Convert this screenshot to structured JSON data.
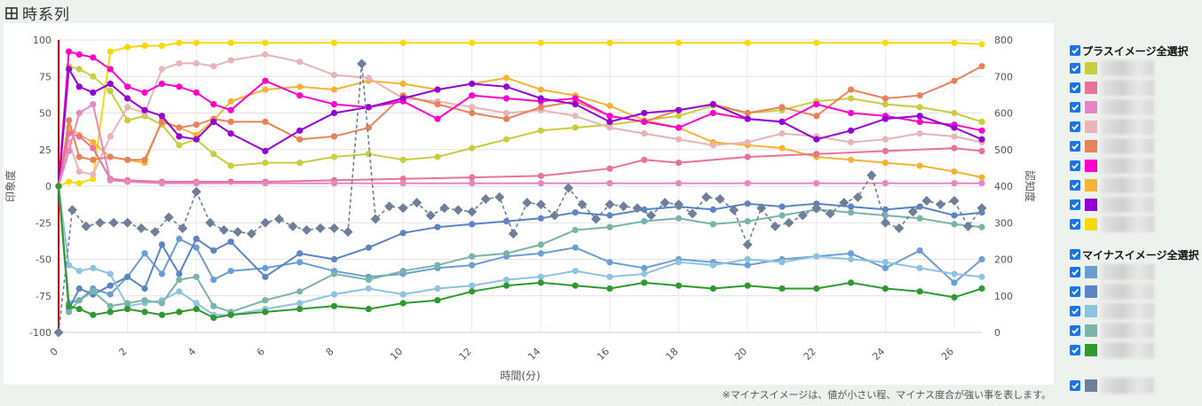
{
  "header": {
    "title": "時系列",
    "icon": "grid-icon"
  },
  "note": "※マイナスイメージは、値が小さい程、マイナス度合が強い事を表します。",
  "legend": {
    "plus_label": "プラスイメージ全選択",
    "minus_label": "マイナスイメージ全選択",
    "plus_items": [
      {
        "color": "#c9cc3f"
      },
      {
        "color": "#e8739a"
      },
      {
        "color": "#e587c5"
      },
      {
        "color": "#e8b4b8"
      },
      {
        "color": "#e8825a"
      },
      {
        "color": "#ff00cc"
      },
      {
        "color": "#f5b335"
      },
      {
        "color": "#9400d3"
      },
      {
        "color": "#f5d90a"
      }
    ],
    "minus_items": [
      {
        "color": "#6a9fd6"
      },
      {
        "color": "#5b84c4"
      },
      {
        "color": "#8dc2e0"
      },
      {
        "color": "#79b4a9"
      },
      {
        "color": "#2e9a2e"
      }
    ],
    "extra_items": [
      {
        "color": "#6f7f99"
      }
    ]
  },
  "chart_data": {
    "type": "line",
    "xlabel": "時間(分)",
    "ylabel": "印象度",
    "y2label": "認知度",
    "xlim": [
      0,
      26.8
    ],
    "ylim": [
      -100,
      100
    ],
    "y2lim": [
      0,
      800
    ],
    "xticks": [
      "0",
      "2",
      "4",
      "6",
      "8",
      "10",
      "12",
      "14",
      "16",
      "18",
      "20",
      "22",
      "24",
      "26"
    ],
    "yticks": [
      "100",
      "75",
      "50",
      "25",
      "0",
      "-25",
      "-50",
      "-75",
      "-100"
    ],
    "y2ticks": [
      "800",
      "700",
      "600",
      "500",
      "400",
      "300",
      "200",
      "100",
      "0"
    ],
    "grid": true,
    "series": [
      {
        "color": "#f5d90a",
        "axis": "left",
        "x": [
          0,
          0.3,
          0.6,
          1,
          1.5,
          2,
          2.5,
          3,
          3.5,
          4,
          5,
          6,
          8,
          10,
          12,
          14,
          16,
          18,
          20,
          22,
          24,
          26,
          26.8
        ],
        "y": [
          0,
          3,
          2,
          5,
          92,
          95,
          96,
          96,
          98,
          98,
          98,
          98,
          98,
          98,
          98,
          98,
          98,
          98,
          98,
          98,
          98,
          98,
          97
        ]
      },
      {
        "color": "#f5b335",
        "axis": "left",
        "x": [
          0,
          0.3,
          0.6,
          1,
          1.5,
          2,
          2.5,
          3,
          3.5,
          4,
          4.5,
          5,
          6,
          7,
          8,
          9,
          10,
          11,
          12,
          13,
          14,
          15,
          16,
          17,
          18,
          19,
          20,
          21,
          22,
          23,
          24,
          25,
          26,
          26.8
        ],
        "y": [
          0,
          40,
          35,
          30,
          20,
          18,
          16,
          45,
          40,
          35,
          45,
          58,
          66,
          68,
          66,
          72,
          70,
          66,
          70,
          74,
          66,
          62,
          55,
          45,
          40,
          30,
          28,
          26,
          20,
          18,
          16,
          14,
          10,
          6
        ]
      },
      {
        "color": "#c9cc3f",
        "axis": "left",
        "x": [
          0,
          0.3,
          0.6,
          1,
          1.5,
          2,
          2.5,
          3,
          3.5,
          4,
          4.5,
          5,
          6,
          7,
          8,
          9,
          10,
          11,
          12,
          13,
          14,
          15,
          16,
          17,
          18,
          19,
          20,
          21,
          22,
          23,
          24,
          25,
          26,
          26.8
        ],
        "y": [
          0,
          82,
          80,
          75,
          65,
          45,
          48,
          42,
          28,
          32,
          22,
          14,
          16,
          16,
          20,
          22,
          18,
          20,
          26,
          32,
          38,
          40,
          42,
          45,
          48,
          55,
          50,
          52,
          58,
          60,
          56,
          54,
          50,
          44
        ]
      },
      {
        "color": "#e8b4b8",
        "axis": "left",
        "x": [
          0,
          0.3,
          0.6,
          1,
          1.5,
          2,
          2.5,
          3,
          3.5,
          4,
          4.5,
          5,
          6,
          7,
          8,
          9,
          10,
          11,
          12,
          13,
          14,
          15,
          16,
          17,
          18,
          19,
          20,
          21,
          22,
          23,
          24,
          25,
          26,
          26.8
        ],
        "y": [
          0,
          30,
          10,
          8,
          34,
          54,
          50,
          80,
          84,
          84,
          82,
          86,
          90,
          85,
          76,
          74,
          60,
          58,
          54,
          50,
          52,
          48,
          40,
          36,
          32,
          28,
          30,
          36,
          34,
          30,
          32,
          36,
          34,
          30
        ]
      },
      {
        "color": "#e8825a",
        "axis": "left",
        "x": [
          0,
          0.3,
          0.6,
          1,
          1.5,
          2,
          2.5,
          3,
          3.5,
          4,
          4.5,
          5,
          6,
          7,
          8,
          9,
          10,
          11,
          12,
          13,
          14,
          15,
          16,
          17,
          18,
          19,
          20,
          21,
          22,
          23,
          24,
          25,
          26,
          26.8
        ],
        "y": [
          0,
          45,
          20,
          18,
          20,
          18,
          18,
          44,
          40,
          42,
          46,
          44,
          44,
          32,
          34,
          40,
          62,
          56,
          50,
          46,
          54,
          58,
          48,
          44,
          52,
          56,
          50,
          54,
          48,
          66,
          60,
          62,
          72,
          82
        ]
      },
      {
        "color": "#ff00cc",
        "axis": "left",
        "x": [
          0,
          0.3,
          0.6,
          1,
          1.5,
          2,
          2.5,
          3,
          3.5,
          4,
          4.5,
          5,
          6,
          7,
          8,
          9,
          10,
          11,
          12,
          13,
          14,
          15,
          16,
          17,
          18,
          19,
          20,
          21,
          22,
          23,
          24,
          25,
          26,
          26.8
        ],
        "y": [
          0,
          92,
          90,
          88,
          80,
          68,
          64,
          70,
          68,
          64,
          56,
          52,
          72,
          62,
          56,
          54,
          58,
          46,
          62,
          60,
          58,
          60,
          48,
          44,
          40,
          50,
          46,
          44,
          56,
          50,
          48,
          44,
          42,
          38
        ]
      },
      {
        "color": "#9400d3",
        "axis": "left",
        "x": [
          0,
          0.3,
          0.6,
          1,
          1.5,
          2,
          2.5,
          3,
          3.5,
          4,
          4.5,
          5,
          6,
          7,
          8,
          9,
          10,
          11,
          12,
          13,
          14,
          15,
          16,
          17,
          18,
          19,
          20,
          21,
          22,
          23,
          24,
          25,
          26,
          26.8
        ],
        "y": [
          0,
          80,
          68,
          64,
          70,
          60,
          52,
          48,
          34,
          32,
          44,
          36,
          24,
          38,
          50,
          54,
          60,
          66,
          70,
          68,
          60,
          56,
          44,
          50,
          52,
          56,
          46,
          44,
          32,
          38,
          46,
          48,
          40,
          32
        ]
      },
      {
        "color": "#e8739a",
        "axis": "left",
        "x": [
          0,
          0.3,
          0.6,
          1,
          1.5,
          2,
          3,
          4,
          5,
          6,
          8,
          10,
          12,
          14,
          16,
          17,
          18,
          20,
          22,
          24,
          26,
          26.8
        ],
        "y": [
          0,
          36,
          34,
          26,
          5,
          4,
          3,
          3,
          3,
          3,
          4,
          5,
          6,
          7,
          12,
          18,
          16,
          20,
          22,
          24,
          26,
          24
        ]
      },
      {
        "color": "#e587c5",
        "axis": "left",
        "x": [
          0,
          0.3,
          0.6,
          1,
          1.5,
          2,
          3,
          4,
          6,
          8,
          10,
          12,
          14,
          16,
          18,
          20,
          22,
          24,
          26,
          26.8
        ],
        "y": [
          0,
          24,
          50,
          56,
          4,
          3,
          2,
          2,
          2,
          2,
          2,
          2,
          2,
          2,
          2,
          2,
          2,
          2,
          2,
          2
        ]
      },
      {
        "color": "#6a9fd6",
        "axis": "left",
        "x": [
          0,
          0.3,
          0.6,
          1,
          1.5,
          2,
          2.5,
          3,
          3.5,
          4,
          4.5,
          5,
          6,
          7,
          8,
          9,
          10,
          11,
          12,
          13,
          14,
          15,
          16,
          17,
          18,
          19,
          20,
          21,
          22,
          23,
          24,
          25,
          26,
          26.8
        ],
        "y": [
          0,
          -80,
          -78,
          -70,
          -74,
          -62,
          -46,
          -60,
          -36,
          -42,
          -64,
          -58,
          -56,
          -52,
          -58,
          -62,
          -60,
          -56,
          -54,
          -48,
          -46,
          -42,
          -52,
          -56,
          -50,
          -52,
          -54,
          -50,
          -48,
          -46,
          -56,
          -44,
          -66,
          -50
        ]
      },
      {
        "color": "#5b84c4",
        "axis": "left",
        "x": [
          0,
          0.3,
          0.6,
          1,
          1.5,
          2,
          2.5,
          3,
          3.5,
          4,
          4.5,
          5,
          6,
          7,
          8,
          9,
          10,
          11,
          12,
          13,
          14,
          15,
          16,
          17,
          18,
          19,
          20,
          21,
          22,
          23,
          24,
          25,
          26,
          26.8
        ],
        "y": [
          0,
          -84,
          -70,
          -74,
          -68,
          -62,
          -70,
          -40,
          -60,
          -36,
          -44,
          -38,
          -62,
          -46,
          -50,
          -42,
          -32,
          -28,
          -26,
          -24,
          -22,
          -18,
          -20,
          -16,
          -14,
          -16,
          -12,
          -14,
          -12,
          -14,
          -16,
          -14,
          -20,
          -18
        ]
      },
      {
        "color": "#8dc2e0",
        "axis": "left",
        "x": [
          0,
          0.3,
          0.6,
          1,
          1.5,
          2,
          2.5,
          3,
          3.5,
          4,
          4.5,
          5,
          6,
          7,
          8,
          9,
          10,
          11,
          12,
          13,
          14,
          15,
          16,
          17,
          18,
          19,
          20,
          21,
          22,
          23,
          24,
          25,
          26,
          26.8
        ],
        "y": [
          0,
          -54,
          -58,
          -56,
          -60,
          -82,
          -80,
          -78,
          -72,
          -80,
          -88,
          -88,
          -84,
          -80,
          -74,
          -70,
          -74,
          -70,
          -68,
          -64,
          -62,
          -58,
          -62,
          -60,
          -52,
          -54,
          -50,
          -52,
          -48,
          -50,
          -52,
          -56,
          -60,
          -62
        ]
      },
      {
        "color": "#79b4a9",
        "axis": "left",
        "x": [
          0,
          0.3,
          0.6,
          1,
          1.5,
          2,
          2.5,
          3,
          3.5,
          4,
          4.5,
          5,
          6,
          7,
          8,
          9,
          10,
          11,
          12,
          13,
          14,
          15,
          16,
          17,
          18,
          19,
          20,
          21,
          22,
          23,
          24,
          25,
          26,
          26.8
        ],
        "y": [
          0,
          -86,
          -78,
          -72,
          -82,
          -80,
          -78,
          -80,
          -64,
          -62,
          -82,
          -86,
          -78,
          -72,
          -60,
          -64,
          -58,
          -54,
          -48,
          -46,
          -40,
          -30,
          -28,
          -24,
          -22,
          -26,
          -24,
          -20,
          -16,
          -18,
          -20,
          -22,
          -26,
          -28
        ]
      },
      {
        "color": "#2e9a2e",
        "axis": "left",
        "x": [
          0,
          0.3,
          0.6,
          1,
          1.5,
          2,
          2.5,
          3,
          3.5,
          4,
          4.5,
          5,
          6,
          7,
          8,
          9,
          10,
          11,
          12,
          13,
          14,
          15,
          16,
          17,
          18,
          19,
          20,
          21,
          22,
          23,
          24,
          25,
          26,
          26.8
        ],
        "y": [
          0,
          -82,
          -84,
          -88,
          -86,
          -84,
          -86,
          -88,
          -86,
          -84,
          -90,
          -88,
          -86,
          -84,
          -82,
          -84,
          -80,
          -78,
          -72,
          -68,
          -66,
          -68,
          -70,
          -66,
          -68,
          -70,
          -68,
          -70,
          -70,
          -66,
          -70,
          -72,
          -76,
          -70
        ]
      },
      {
        "color": "#6f7f99",
        "axis": "right",
        "marker": "diamond",
        "dashed": true,
        "x": [
          0,
          0.4,
          0.8,
          1.2,
          1.6,
          2,
          2.4,
          2.8,
          3.2,
          3.6,
          4,
          4.4,
          4.8,
          5.2,
          5.6,
          6,
          6.4,
          6.8,
          7.2,
          7.6,
          8,
          8.4,
          8.8,
          9.2,
          9.6,
          10,
          10.4,
          10.8,
          11.2,
          11.6,
          12,
          12.4,
          12.8,
          13.2,
          13.6,
          14,
          14.4,
          14.8,
          15.2,
          15.6,
          16,
          16.4,
          16.8,
          17.2,
          17.6,
          18,
          18.4,
          18.8,
          19.2,
          19.6,
          20,
          20.4,
          20.8,
          21.2,
          21.6,
          22,
          22.4,
          22.8,
          23.2,
          23.6,
          24,
          24.4,
          24.8,
          25.2,
          25.6,
          26,
          26.4,
          26.8
        ],
        "y": [
          0,
          335,
          290,
          300,
          300,
          300,
          285,
          275,
          315,
          285,
          385,
          300,
          280,
          275,
          270,
          300,
          310,
          290,
          280,
          285,
          285,
          275,
          735,
          310,
          345,
          340,
          355,
          320,
          340,
          335,
          330,
          365,
          370,
          270,
          355,
          350,
          320,
          395,
          350,
          310,
          350,
          345,
          340,
          320,
          355,
          350,
          325,
          370,
          365,
          335,
          240,
          340,
          290,
          300,
          320,
          340,
          325,
          355,
          370,
          430,
          300,
          285,
          330,
          360,
          350,
          360,
          290,
          340
        ]
      }
    ]
  }
}
